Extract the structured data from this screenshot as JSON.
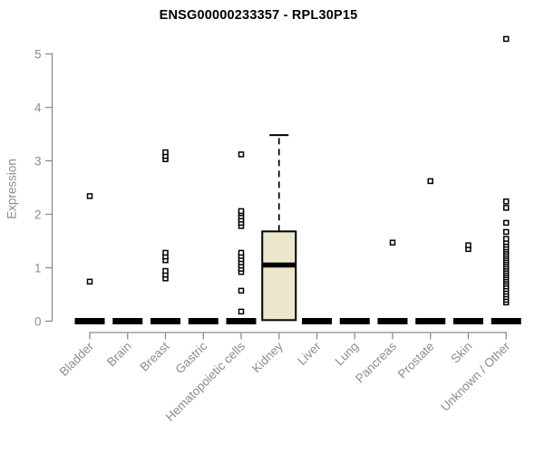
{
  "header": {
    "title": "ENSG00000233357 - RPL30P15"
  },
  "chart_data": {
    "type": "boxplot",
    "title": "ENSG00000233357 - RPL30P15",
    "ylabel": "Expression",
    "xlabel": "",
    "ylim": [
      0,
      5.3
    ],
    "yticks": [
      0,
      1,
      2,
      3,
      4,
      5
    ],
    "grid": false,
    "legend": "none",
    "colors": {
      "box_fill": "#ece6cd",
      "box_border": "#000000",
      "median": "#000000",
      "outlier": "#000000",
      "axis": "#8c8c8c",
      "title": "#000000",
      "background": "#ffffff"
    },
    "categories": [
      "Bladder",
      "Brain",
      "Breast",
      "Gastric",
      "Hematopoietic cells",
      "Kidney",
      "Liver",
      "Lung",
      "Pancreas",
      "Prostate",
      "Skin",
      "Unknown / Other"
    ],
    "series": [
      {
        "category": "Bladder",
        "median": 0,
        "q1": 0,
        "q3": 0,
        "whisker_low": 0,
        "whisker_high": 0,
        "outliers": [
          0.74,
          2.34
        ]
      },
      {
        "category": "Brain",
        "median": 0,
        "q1": 0,
        "q3": 0,
        "whisker_low": 0,
        "whisker_high": 0,
        "outliers": []
      },
      {
        "category": "Breast",
        "median": 0,
        "q1": 0,
        "q3": 0,
        "whisker_low": 0,
        "whisker_high": 0,
        "outliers": [
          0.8,
          0.87,
          0.94,
          1.14,
          1.21,
          1.28,
          3.03,
          3.09,
          3.16
        ]
      },
      {
        "category": "Gastric",
        "median": 0,
        "q1": 0,
        "q3": 0,
        "whisker_low": 0,
        "whisker_high": 0,
        "outliers": []
      },
      {
        "category": "Hematopoietic cells",
        "median": 0,
        "q1": 0,
        "q3": 0,
        "whisker_low": 0,
        "whisker_high": 0,
        "outliers": [
          0.18,
          0.57,
          0.92,
          0.98,
          1.04,
          1.1,
          1.16,
          1.22,
          1.28,
          1.78,
          1.84,
          1.9,
          1.96,
          2.02,
          2.06,
          3.12
        ]
      },
      {
        "category": "Kidney",
        "median": 1.05,
        "q1": 0.02,
        "q3": 1.68,
        "whisker_low": 0.02,
        "whisker_high": 3.48,
        "outliers": []
      },
      {
        "category": "Liver",
        "median": 0,
        "q1": 0,
        "q3": 0,
        "whisker_low": 0,
        "whisker_high": 0,
        "outliers": []
      },
      {
        "category": "Lung",
        "median": 0,
        "q1": 0,
        "q3": 0,
        "whisker_low": 0,
        "whisker_high": 0,
        "outliers": []
      },
      {
        "category": "Pancreas",
        "median": 0,
        "q1": 0,
        "q3": 0,
        "whisker_low": 0,
        "whisker_high": 0,
        "outliers": [
          1.47
        ]
      },
      {
        "category": "Prostate",
        "median": 0,
        "q1": 0,
        "q3": 0,
        "whisker_low": 0,
        "whisker_high": 0,
        "outliers": [
          2.62
        ]
      },
      {
        "category": "Skin",
        "median": 0,
        "q1": 0,
        "q3": 0,
        "whisker_low": 0,
        "whisker_high": 0,
        "outliers": [
          1.35,
          1.42
        ]
      },
      {
        "category": "Unknown / Other",
        "median": 0,
        "q1": 0,
        "q3": 0,
        "whisker_low": 0,
        "whisker_high": 0,
        "outliers": [
          0.35,
          0.4,
          0.45,
          0.5,
          0.55,
          0.6,
          0.65,
          0.7,
          0.74,
          0.78,
          0.82,
          0.86,
          0.9,
          0.94,
          0.98,
          1.02,
          1.06,
          1.1,
          1.14,
          1.18,
          1.22,
          1.26,
          1.3,
          1.34,
          1.38,
          1.43,
          1.48,
          1.54,
          1.67,
          1.84,
          2.12,
          2.24,
          5.28
        ]
      }
    ]
  }
}
